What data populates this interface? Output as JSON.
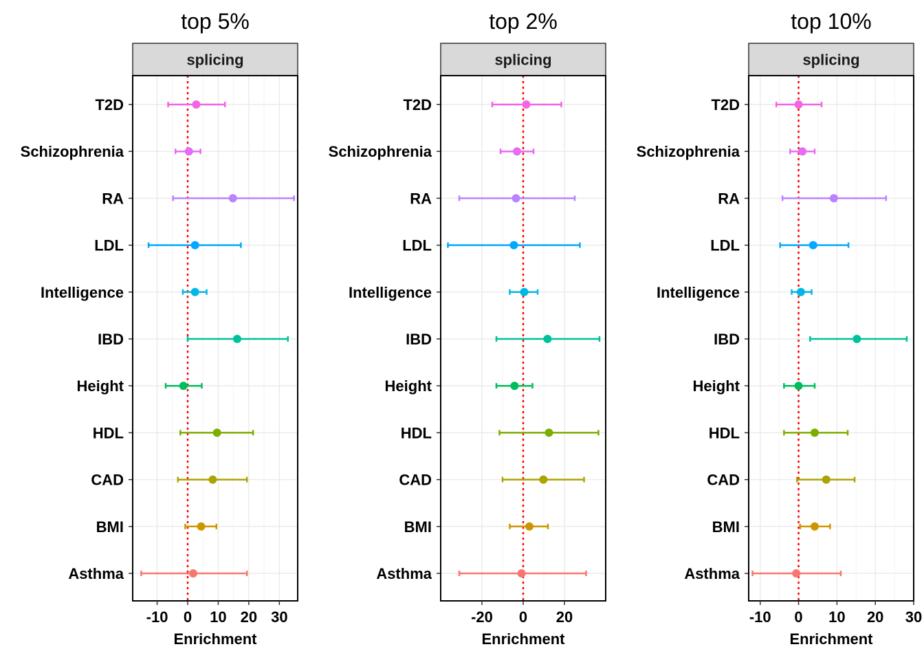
{
  "chart_data": [
    {
      "type": "scatter",
      "title": "top 5%",
      "strip_label": "splicing",
      "xlabel": "Enrichment",
      "ylabel": "",
      "xlim": [
        -18,
        36
      ],
      "xticks": [
        -10,
        0,
        10,
        20,
        30
      ],
      "xtick_labels": [
        "-10",
        "0",
        "10",
        "20",
        "30"
      ],
      "reference_line": 0,
      "grid": true,
      "categories": [
        "T2D",
        "Schizophrenia",
        "RA",
        "LDL",
        "Intelligence",
        "IBD",
        "Height",
        "HDL",
        "CAD",
        "BMI",
        "Asthma"
      ],
      "estimates": [
        2.8,
        0.4,
        14.8,
        2.4,
        2.4,
        16.2,
        -1.4,
        9.6,
        8.2,
        4.4,
        1.8
      ],
      "ci_lower": [
        -6.4,
        -4.0,
        -4.8,
        -12.8,
        -1.6,
        0.0,
        -7.2,
        -2.4,
        -3.2,
        -0.8,
        -15.2
      ],
      "ci_upper": [
        12.2,
        4.2,
        34.8,
        17.4,
        6.2,
        32.8,
        4.6,
        21.4,
        19.4,
        9.4,
        19.4
      ]
    },
    {
      "type": "scatter",
      "title": "top 2%",
      "strip_label": "splicing",
      "xlabel": "Enrichment",
      "ylabel": "",
      "xlim": [
        -40,
        40
      ],
      "xticks": [
        -20,
        0,
        20
      ],
      "xtick_labels": [
        "-20",
        "0",
        "20"
      ],
      "reference_line": 0,
      "grid": true,
      "categories": [
        "T2D",
        "Schizophrenia",
        "RA",
        "LDL",
        "Intelligence",
        "IBD",
        "Height",
        "HDL",
        "CAD",
        "BMI",
        "Asthma"
      ],
      "estimates": [
        1.5,
        -3.0,
        -3.5,
        -4.5,
        0.5,
        11.8,
        -4.2,
        12.5,
        9.8,
        3.0,
        -0.8
      ],
      "ci_lower": [
        -15.0,
        -11.0,
        -31.0,
        -36.5,
        -6.5,
        -13.0,
        -13.0,
        -11.5,
        -10.0,
        -6.5,
        -31.0
      ],
      "ci_upper": [
        18.5,
        5.0,
        25.0,
        27.5,
        7.0,
        37.0,
        4.5,
        36.5,
        29.5,
        12.0,
        30.5
      ]
    },
    {
      "type": "scatter",
      "title": "top 10%",
      "strip_label": "splicing",
      "xlabel": "Enrichment",
      "ylabel": "",
      "xlim": [
        -13,
        30
      ],
      "xticks": [
        -10,
        0,
        10,
        20,
        30
      ],
      "xtick_labels": [
        "-10",
        "0",
        "10",
        "20",
        "30"
      ],
      "reference_line": 0,
      "grid": true,
      "categories": [
        "T2D",
        "Schizophrenia",
        "RA",
        "LDL",
        "Intelligence",
        "IBD",
        "Height",
        "HDL",
        "CAD",
        "BMI",
        "Asthma"
      ],
      "estimates": [
        0.0,
        1.0,
        9.2,
        3.8,
        0.6,
        15.2,
        0.0,
        4.2,
        7.2,
        4.2,
        -0.6
      ],
      "ci_lower": [
        -5.8,
        -2.2,
        -4.2,
        -4.8,
        -1.8,
        3.0,
        -3.8,
        -3.8,
        -0.4,
        0.4,
        -12.0
      ],
      "ci_upper": [
        6.0,
        4.2,
        22.8,
        13.0,
        3.4,
        28.2,
        4.2,
        12.8,
        14.6,
        8.2,
        11.0
      ]
    }
  ],
  "colors": {
    "T2D": "#f564e3",
    "Schizophrenia": "#e76bf3",
    "RA": "#b983ff",
    "LDL": "#00a9ff",
    "Intelligence": "#00b8e7",
    "IBD": "#00c19a",
    "Height": "#00bd5c",
    "HDL": "#7cae00",
    "CAD": "#aba300",
    "BMI": "#cd9600",
    "Asthma": "#f8766d",
    "panel_border": "#000000",
    "strip_fill": "#d9d9d9",
    "grid": "#ebebeb",
    "reference_line": "#ff0000"
  }
}
